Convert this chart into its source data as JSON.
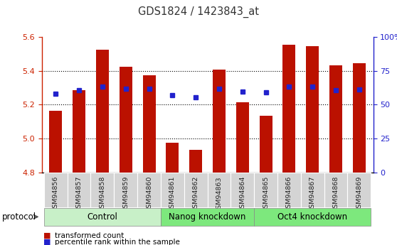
{
  "title": "GDS1824 / 1423843_at",
  "samples": [
    "GSM94856",
    "GSM94857",
    "GSM94858",
    "GSM94859",
    "GSM94860",
    "GSM94861",
    "GSM94862",
    "GSM94863",
    "GSM94864",
    "GSM94865",
    "GSM94866",
    "GSM94867",
    "GSM94868",
    "GSM94869"
  ],
  "red_values": [
    5.165,
    5.285,
    5.525,
    5.425,
    5.375,
    4.975,
    4.935,
    5.405,
    5.215,
    5.135,
    5.555,
    5.545,
    5.43,
    5.445
  ],
  "blue_values": [
    5.265,
    5.285,
    5.305,
    5.295,
    5.295,
    5.255,
    5.245,
    5.295,
    5.278,
    5.275,
    5.305,
    5.305,
    5.285,
    5.29
  ],
  "ylim": [
    4.8,
    5.6
  ],
  "yticks_left": [
    4.8,
    5.0,
    5.2,
    5.4,
    5.6
  ],
  "yticks_right_vals": [
    0,
    25,
    50,
    75,
    100
  ],
  "yticks_right_labels": [
    "0",
    "25",
    "50",
    "75",
    "100%"
  ],
  "bar_color": "#bb1100",
  "dot_color": "#2222cc",
  "bar_bottom": 4.8,
  "bar_width": 0.55,
  "left_tick_color": "#cc2200",
  "right_tick_color": "#2222cc",
  "grid_color": "#000000",
  "xlabel_bg": "#d0d0d0",
  "group_ranges": [
    [
      0,
      5
    ],
    [
      5,
      9
    ],
    [
      9,
      14
    ]
  ],
  "group_labels": [
    "Control",
    "Nanog knockdown",
    "Oct4 knockdown"
  ],
  "group_colors": [
    "#c8f0c8",
    "#7de87d",
    "#7de87d"
  ],
  "legend_red_label": "transformed count",
  "legend_blue_label": "percentile rank within the sample",
  "protocol_label": "protocol"
}
